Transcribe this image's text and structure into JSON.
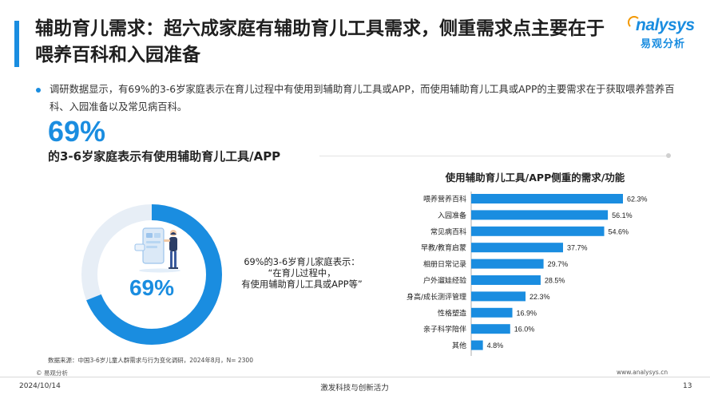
{
  "header": {
    "title": "辅助育儿需求：超六成家庭有辅助育儿工具需求，侧重需求点主要在于喂养百科和入园准备",
    "logo_word": "nalysys",
    "logo_cn": "易观分析"
  },
  "intro": "调研数据显示，有69%的3-6岁家庭表示在育儿过程中有使用到辅助育儿工具或APP，而使用辅助育儿工具或APP的主要需求在于获取喂养营养百科、入园准备以及常见病百科。",
  "stat": {
    "big_pct": "69%",
    "subtitle": "的3-6岁家庭表示有使用辅助育儿工具/APP",
    "donut_label": "69%",
    "donut_value": 69,
    "desc_line1": "69%的3-6岁育儿家庭表示：",
    "desc_line2": "“在育儿过程中，",
    "desc_line3": "有使用辅助育儿工具或APP等”"
  },
  "chart_data": {
    "type": "bar",
    "orientation": "horizontal",
    "title": "使用辅助育儿工具/APP侧重的需求/功能",
    "categories": [
      "喂养营养百科",
      "入园准备",
      "常见病百科",
      "早教/教育启蒙",
      "相册日常记录",
      "户外遛娃经验",
      "身高/成长测评管理",
      "性格塑造",
      "亲子科学陪伴",
      "其他"
    ],
    "values": [
      62.3,
      56.1,
      54.6,
      37.7,
      29.7,
      28.5,
      22.3,
      16.9,
      16.0,
      4.8
    ],
    "value_labels": [
      "62.3%",
      "56.1%",
      "54.6%",
      "37.7%",
      "29.7%",
      "28.5%",
      "22.3%",
      "16.9%",
      "16.0%",
      "4.8%"
    ],
    "xlim": [
      0,
      62.3
    ],
    "grid": false,
    "color": "#1a8de0"
  },
  "footer": {
    "source": "数据来源：中国3-6岁儿童人群需求与行为变化调研，2024年8月，N= 2300",
    "copyright": "© 易观分析",
    "website": "www.analysys.cn",
    "date": "2024/10/14",
    "slogan": "激发科技与创新活力",
    "page": "13"
  }
}
